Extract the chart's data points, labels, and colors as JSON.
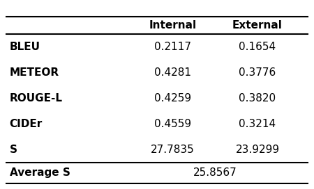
{
  "col_headers": [
    "",
    "Internal",
    "External"
  ],
  "rows": [
    [
      "BLEU",
      "0.2117",
      "0.1654"
    ],
    [
      "METEOR",
      "0.4281",
      "0.3776"
    ],
    [
      "ROUGE-L",
      "0.4259",
      "0.3820"
    ],
    [
      "CIDEr",
      "0.4559",
      "0.3214"
    ],
    [
      "S",
      "27.7835",
      "23.9299"
    ]
  ],
  "bottom_row_label": "Average S",
  "bottom_row_value": "25.8567",
  "background_color": "#ffffff",
  "text_color": "#000000",
  "fontsize": 11
}
